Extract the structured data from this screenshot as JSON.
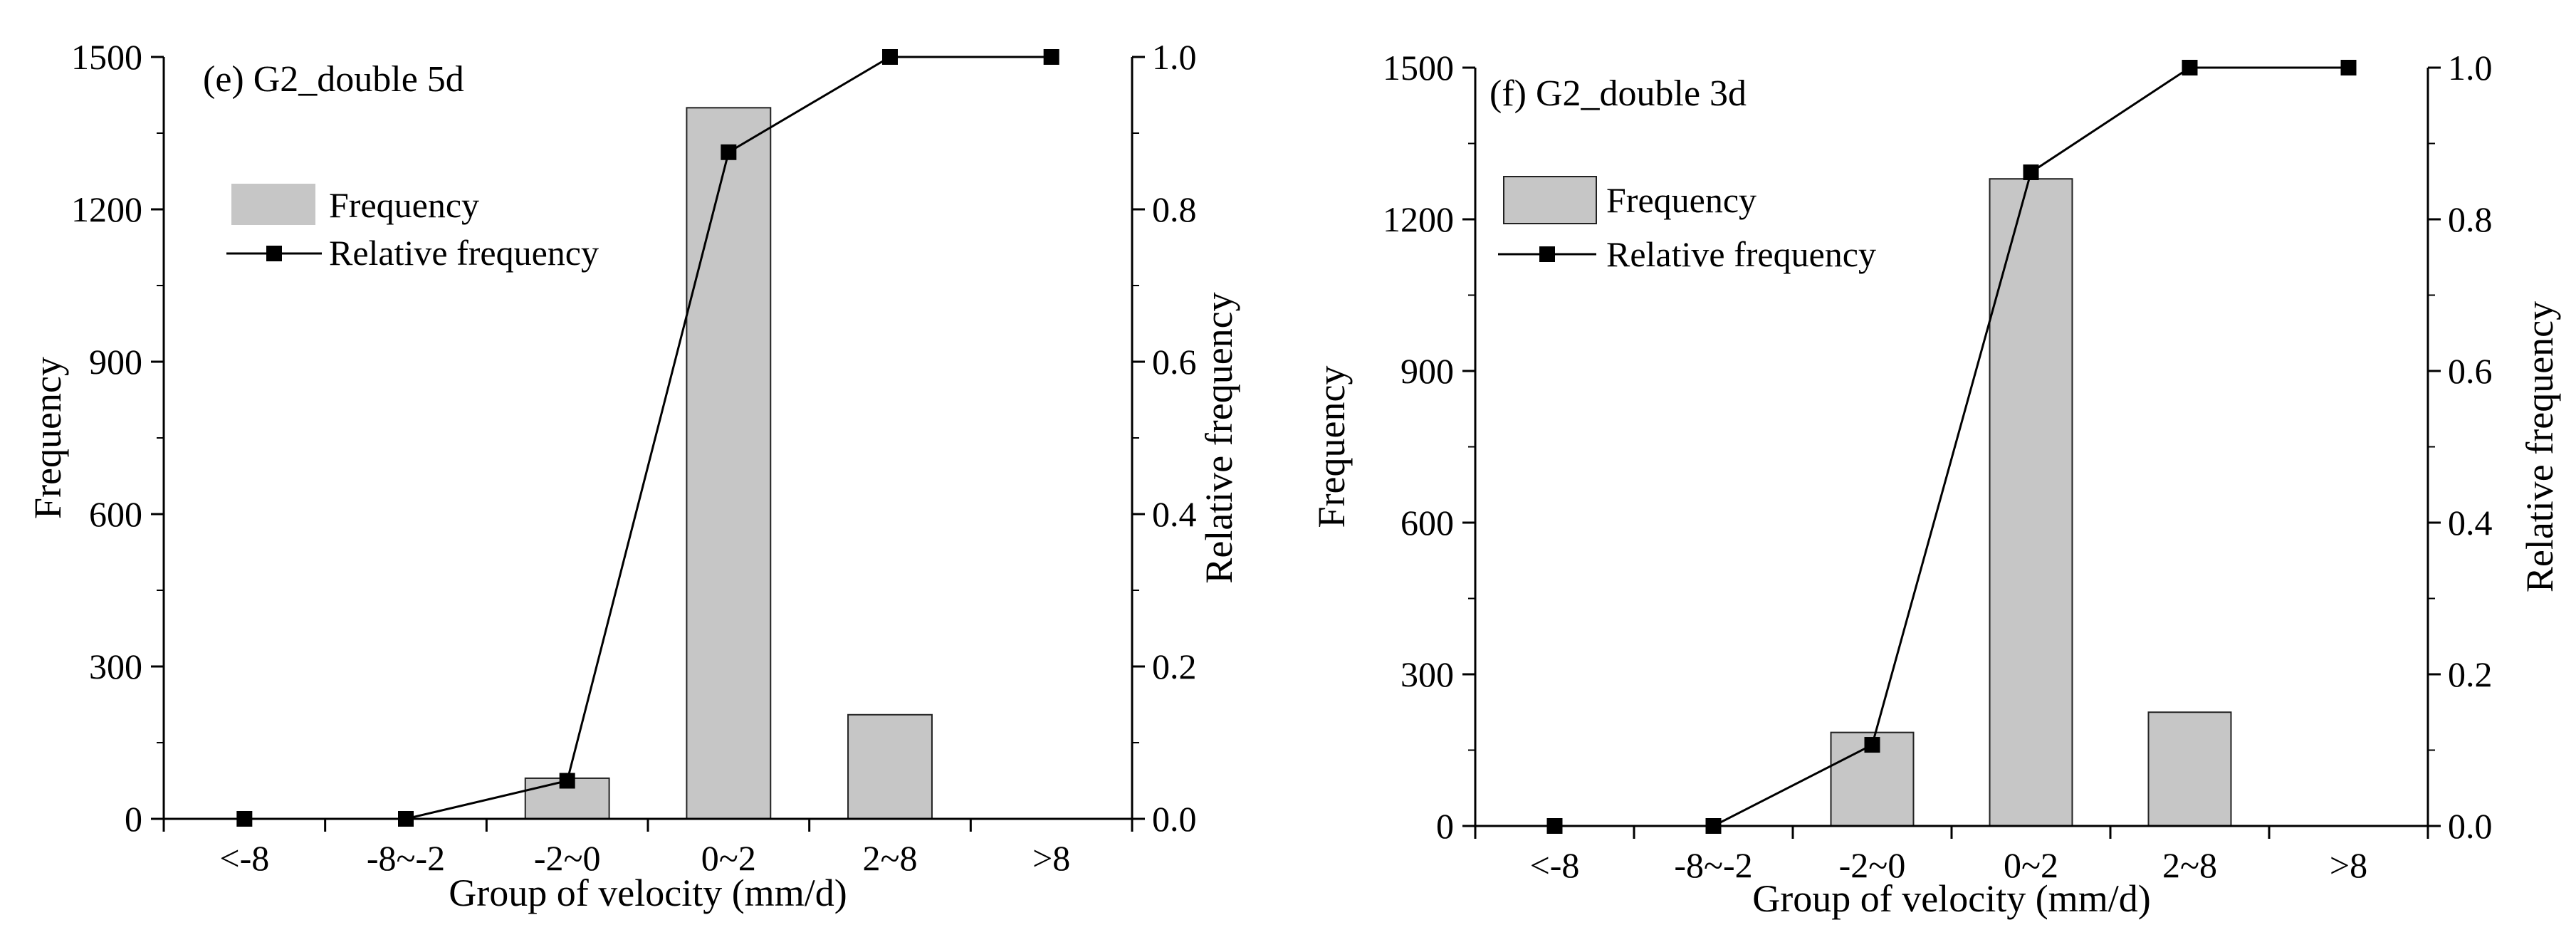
{
  "colors": {
    "bar": "#c6c6c6",
    "line": "#000000",
    "axis": "#000000"
  },
  "chart_data": [
    {
      "type": "bar+line",
      "title": "(e) G2_double 5d",
      "xlabel": "Group of velocity (mm/d)",
      "ylabel": "Frequency",
      "y2label": "Relative frequency",
      "categories": [
        "<-8",
        "-8~-2",
        "-2~0",
        "0~2",
        "2~8",
        ">8"
      ],
      "ylim": [
        0,
        1500
      ],
      "yticks": [
        "0",
        "300",
        "600",
        "900",
        "1200",
        "1500"
      ],
      "y2lim": [
        0,
        1
      ],
      "y2ticks": [
        "0.0",
        "0.2",
        "0.4",
        "0.6",
        "0.8",
        "1.0"
      ],
      "series": [
        {
          "name": "Frequency",
          "kind": "bar",
          "values": [
            0,
            0,
            80,
            1400,
            205,
            0
          ]
        },
        {
          "name": "Relative frequency",
          "kind": "line",
          "values": [
            0.0,
            0.0,
            0.05,
            0.875,
            1.0,
            1.0
          ]
        }
      ],
      "legend": {
        "position": "upper-left",
        "entries": [
          "Frequency",
          "Relative frequency"
        ]
      }
    },
    {
      "type": "bar+line",
      "title": "(f) G2_double 3d",
      "xlabel": "Group of velocity (mm/d)",
      "ylabel": "Frequency",
      "y2label": "Relative frequency",
      "categories": [
        "<-8",
        "-8~-2",
        "-2~0",
        "0~2",
        "2~8",
        ">8"
      ],
      "ylim": [
        0,
        1500
      ],
      "yticks": [
        "0",
        "300",
        "600",
        "900",
        "1200",
        "1500"
      ],
      "y2lim": [
        0,
        1
      ],
      "y2ticks": [
        "0.0",
        "0.2",
        "0.4",
        "0.6",
        "0.8",
        "1.0"
      ],
      "series": [
        {
          "name": "Frequency",
          "kind": "bar",
          "values": [
            0,
            0,
            185,
            1280,
            225,
            0
          ]
        },
        {
          "name": "Relative frequency",
          "kind": "line",
          "values": [
            0.0,
            0.0,
            0.107,
            0.862,
            1.0,
            1.0
          ]
        }
      ],
      "legend": {
        "position": "upper-left",
        "entries": [
          "Frequency",
          "Relative frequency"
        ]
      }
    }
  ]
}
